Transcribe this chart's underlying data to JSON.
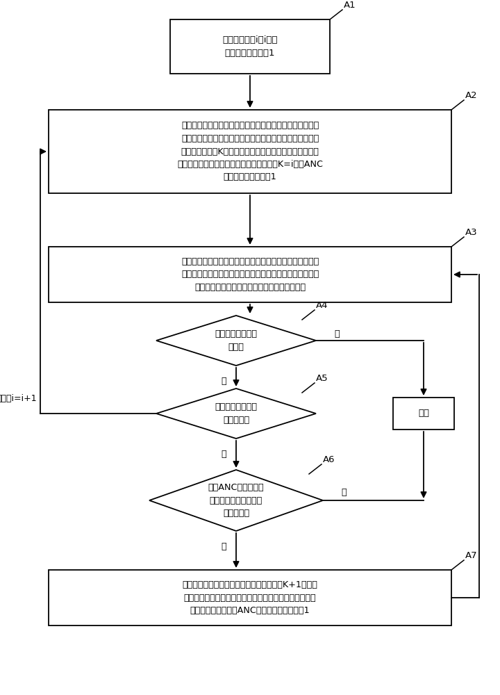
{
  "bg_color": "#ffffff",
  "nodes": {
    "A1": {
      "text": "设迭代次数为i，i为正\n整数，且初始值为1",
      "label": "A1"
    },
    "A2": {
      "text": "首先，将元件按其所对应的吸嘴类别进行分类，并将所有吸\n嘴按其对应贴片数降序排列，然后，将当前对应贴片数最多\n的吸嘴分配在第K个可用的贴片头上，并将该当前对应贴片\n数最多的吸嘴划分在第一个吸嘴组内，其中K=i，将ANC\n上对应吸嘴的个数减1",
      "label": "A2"
    },
    "A3": {
      "text": "按照分配好的吸嘴组进行模拟贴装，并在模拟过程中记录该\n吸嘴组内各吸嘴所对应的贴装周期数，直至贴片头上的吸嘴\n将对应元件贴完，并记录剩余未贴装元件的信息",
      "label": "A3"
    },
    "A4": {
      "text": "判断是否还有可用\n贴片头",
      "label": "A4"
    },
    "A5": {
      "text": "判断是否还有剩余\n未贴装元件",
      "label": "A5"
    },
    "A6": {
      "text": "判断ANC上是否还有\n剩余的对应贴装周期数\n最大的吸嘴",
      "label": "A6"
    },
    "A7": {
      "text": "将对应贴装周期数最大的可用吸嘴分配在第K+1个可用\n的贴片头上，并将该对应贴装周期数最大的可用吸嘴划分\n在第一个吸嘴组内，ANC上对应吸嘴的个数减1",
      "label": "A7"
    },
    "END": {
      "text": "结束",
      "label": ""
    }
  }
}
